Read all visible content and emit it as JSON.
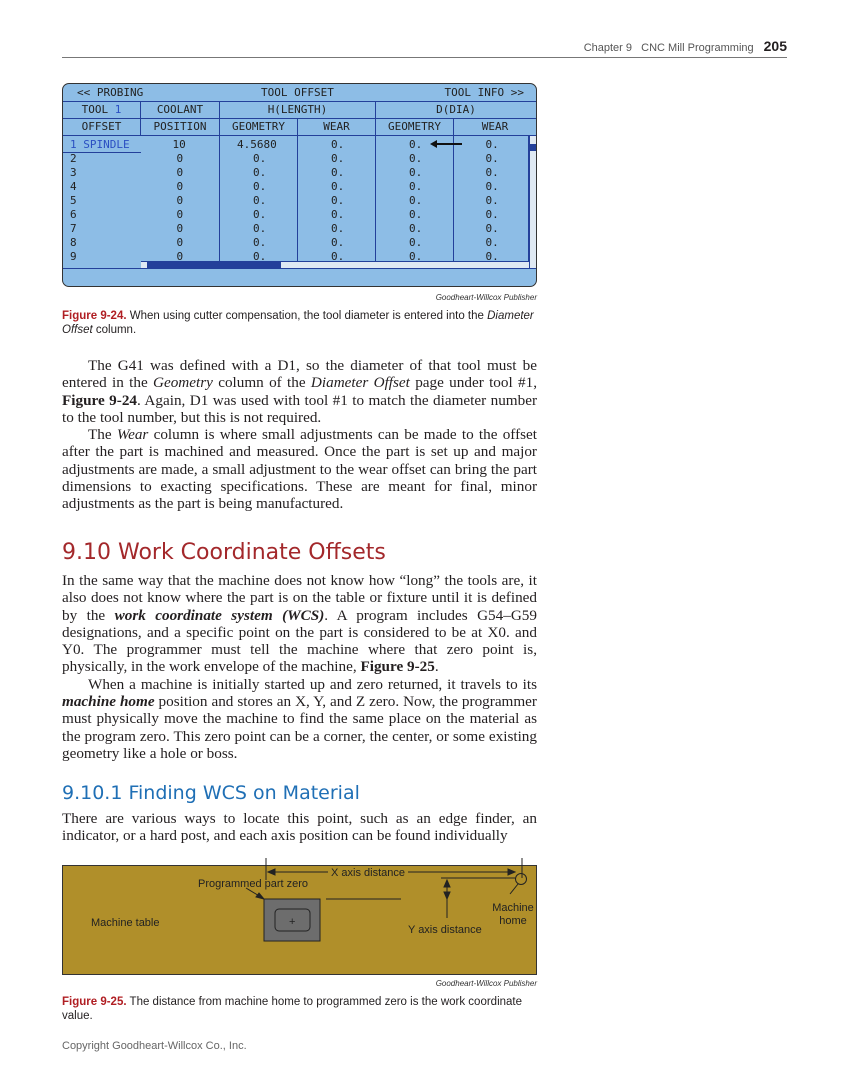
{
  "header": {
    "chapter": "Chapter 9",
    "title": "CNC Mill Programming",
    "page": "205"
  },
  "figure_924": {
    "nav_left": "<< PROBING",
    "title": "TOOL OFFSET",
    "nav_right": "TOOL INFO >>",
    "tool_label": "TOOL",
    "tool_number": "1",
    "group_headers": [
      "COOLANT",
      "H(LENGTH)",
      "D(DIA)"
    ],
    "col_headers": [
      "OFFSET",
      "POSITION",
      "GEOMETRY",
      "WEAR",
      "GEOMETRY",
      "WEAR"
    ],
    "rows": [
      [
        "1 SPINDLE",
        "10",
        "4.5680",
        "0.",
        "0.",
        "0."
      ],
      [
        "2",
        "0",
        "0.",
        "0.",
        "0.",
        "0."
      ],
      [
        "3",
        "0",
        "0.",
        "0.",
        "0.",
        "0."
      ],
      [
        "4",
        "0",
        "0.",
        "0.",
        "0.",
        "0."
      ],
      [
        "5",
        "0",
        "0.",
        "0.",
        "0.",
        "0."
      ],
      [
        "6",
        "0",
        "0.",
        "0.",
        "0.",
        "0."
      ],
      [
        "7",
        "0",
        "0.",
        "0.",
        "0.",
        "0."
      ],
      [
        "8",
        "0",
        "0.",
        "0.",
        "0.",
        "0."
      ],
      [
        "9",
        "0",
        "0.",
        "0.",
        "0.",
        "0."
      ]
    ],
    "credit": "Goodheart-Willcox Publisher",
    "caption_label": "Figure 9-24.",
    "caption_text": " When using cutter compensation, the tool diameter is entered into the ",
    "caption_italic": "Diameter Offset",
    "caption_end": " column."
  },
  "colors": {
    "screen": "#8dbde6",
    "grid": "#23409a",
    "accent": "#b01e23",
    "heading": "#a3282b",
    "subheading": "#1f6fb5",
    "table": "#b08f2a"
  },
  "section": {
    "heading": "9.10 Work Coordinate Offsets",
    "subheading": "9.10.1 Finding WCS on Material"
  },
  "figure_925": {
    "labels": {
      "x_axis": "X axis distance",
      "part_zero": "Programmed part zero",
      "machine_home": "Machine home",
      "table": "Machine table",
      "y_axis": "Y axis distance",
      "plus": "+"
    },
    "credit": "Goodheart-Willcox Publisher",
    "caption_label": "Figure 9-25.",
    "caption_text": " The distance from machine home to programmed zero is the work coordinate value."
  },
  "footer": "Copyright Goodheart-Willcox Co., Inc."
}
